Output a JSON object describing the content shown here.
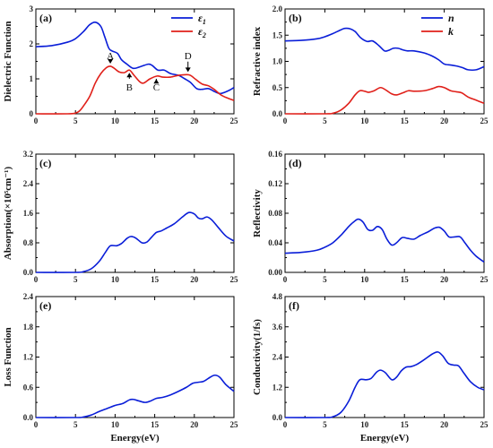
{
  "colors": {
    "blue": "#0a1ed8",
    "red": "#e0201a"
  },
  "chart_data": [
    {
      "type": "line",
      "panel_label": "(a)",
      "xlabel": "",
      "ylabel": "Dielectric Function",
      "xlim": [
        0,
        25
      ],
      "ylim": [
        0,
        3
      ],
      "xticks": [
        0,
        5,
        10,
        15,
        20,
        25
      ],
      "yticks": [
        0,
        1,
        2,
        3
      ],
      "legend": "top-right",
      "series": [
        {
          "name": "ε₁",
          "color": "blue",
          "x": [
            0,
            2,
            4,
            5,
            6,
            6.8,
            7.5,
            8.2,
            8.7,
            9.2,
            9.6,
            10.3,
            10.8,
            11.5,
            12.3,
            13.2,
            14.2,
            14.7,
            15.4,
            16.2,
            17,
            18,
            18.8,
            19.5,
            20.3,
            21,
            21.8,
            22.6,
            23.3,
            24.2,
            25
          ],
          "y": [
            1.92,
            1.95,
            2.05,
            2.15,
            2.35,
            2.55,
            2.62,
            2.5,
            2.2,
            1.88,
            1.8,
            1.73,
            1.55,
            1.42,
            1.3,
            1.35,
            1.42,
            1.38,
            1.25,
            1.25,
            1.15,
            1.1,
            1.0,
            0.9,
            0.72,
            0.7,
            0.72,
            0.63,
            0.58,
            0.65,
            0.75
          ]
        },
        {
          "name": "ε₂",
          "color": "red",
          "x": [
            0,
            4,
            5,
            5.5,
            6,
            6.8,
            7.5,
            8.2,
            8.9,
            9.4,
            9.9,
            10.5,
            11.2,
            11.8,
            12.4,
            13.1,
            13.6,
            14.4,
            15.3,
            16,
            17,
            18,
            19,
            19.5,
            20.2,
            21,
            21.8,
            22.5,
            23.5,
            25
          ],
          "y": [
            0,
            0,
            0.02,
            0.08,
            0.22,
            0.5,
            0.88,
            1.15,
            1.32,
            1.36,
            1.3,
            1.2,
            1.18,
            1.25,
            1.1,
            0.92,
            0.88,
            1.0,
            1.08,
            1.05,
            1.05,
            1.1,
            1.12,
            1.1,
            0.98,
            0.85,
            0.8,
            0.7,
            0.52,
            0.38
          ]
        }
      ],
      "annotations": [
        {
          "text": "A",
          "x": 9.4,
          "y": 1.36,
          "label_y": 1.57,
          "side": "above"
        },
        {
          "text": "B",
          "x": 11.8,
          "y": 1.25,
          "label_y": 0.72,
          "side": "below"
        },
        {
          "text": "C",
          "x": 15.2,
          "y": 1.07,
          "label_y": 0.72,
          "side": "below"
        },
        {
          "text": "D",
          "x": 19.2,
          "y": 1.12,
          "label_y": 1.57,
          "side": "above"
        }
      ]
    },
    {
      "type": "line",
      "panel_label": "(b)",
      "xlabel": "",
      "ylabel": "Refractive index",
      "xlim": [
        0,
        25
      ],
      "ylim": [
        0,
        2
      ],
      "xticks": [
        0,
        5,
        10,
        15,
        20,
        25
      ],
      "yticks": [
        0.0,
        0.5,
        1.0,
        1.5,
        2.0
      ],
      "tick_labels_y": [
        "0.0",
        "0.5",
        "1.0",
        "1.5",
        "2.0"
      ],
      "legend": "top-right",
      "series": [
        {
          "name": "n",
          "color": "blue",
          "x": [
            0,
            2,
            4,
            5,
            6,
            7,
            7.5,
            8.2,
            8.8,
            9.5,
            10.3,
            11,
            11.8,
            12.5,
            13,
            13.6,
            14.2,
            14.8,
            15.4,
            16.2,
            17.5,
            18.5,
            19.3,
            20,
            20.8,
            21.6,
            22.3,
            23,
            24,
            25
          ],
          "y": [
            1.39,
            1.4,
            1.43,
            1.47,
            1.53,
            1.6,
            1.63,
            1.62,
            1.57,
            1.45,
            1.38,
            1.39,
            1.3,
            1.2,
            1.21,
            1.25,
            1.25,
            1.22,
            1.2,
            1.2,
            1.16,
            1.1,
            1.03,
            0.95,
            0.93,
            0.91,
            0.88,
            0.84,
            0.84,
            0.9
          ]
        },
        {
          "name": "k",
          "color": "red",
          "x": [
            0,
            5,
            6,
            7,
            8,
            8.8,
            9.4,
            10,
            10.5,
            11.2,
            12,
            12.7,
            13.4,
            14,
            14.8,
            15.5,
            16.2,
            17.5,
            18.5,
            19.3,
            20,
            20.8,
            21.5,
            22.2,
            23,
            24,
            25
          ],
          "y": [
            0,
            0,
            0.01,
            0.07,
            0.2,
            0.36,
            0.44,
            0.43,
            0.41,
            0.44,
            0.5,
            0.45,
            0.38,
            0.36,
            0.4,
            0.44,
            0.43,
            0.44,
            0.48,
            0.52,
            0.5,
            0.44,
            0.42,
            0.4,
            0.32,
            0.26,
            0.2
          ]
        }
      ]
    },
    {
      "type": "line",
      "panel_label": "(c)",
      "xlabel": "",
      "ylabel": "Absorption(×10⁵cm⁻¹)",
      "xlim": [
        0,
        25
      ],
      "ylim": [
        0,
        3.2
      ],
      "xticks": [
        0,
        5,
        10,
        15,
        20,
        25
      ],
      "yticks": [
        0.0,
        0.8,
        1.6,
        2.4,
        3.2
      ],
      "tick_labels_y": [
        "0.0",
        "0.8",
        "1.6",
        "2.4",
        "3.2"
      ],
      "series": [
        {
          "name": "",
          "color": "blue",
          "x": [
            0,
            5,
            6,
            7,
            8,
            8.8,
            9.4,
            10.2,
            10.8,
            11.5,
            12,
            12.6,
            13.4,
            14,
            14.6,
            15.2,
            15.8,
            16.5,
            17.5,
            18.5,
            19.3,
            20,
            20.5,
            21,
            21.6,
            22.2,
            23,
            24,
            25
          ],
          "y": [
            0,
            0,
            0.02,
            0.1,
            0.3,
            0.55,
            0.72,
            0.72,
            0.78,
            0.92,
            0.97,
            0.93,
            0.8,
            0.82,
            0.95,
            1.08,
            1.12,
            1.2,
            1.32,
            1.5,
            1.62,
            1.58,
            1.47,
            1.45,
            1.5,
            1.42,
            1.22,
            0.98,
            0.85
          ]
        }
      ]
    },
    {
      "type": "line",
      "panel_label": "(d)",
      "xlabel": "",
      "ylabel": "Reflectivity",
      "xlim": [
        0,
        25
      ],
      "ylim": [
        0,
        0.16
      ],
      "xticks": [
        0,
        5,
        10,
        15,
        20,
        25
      ],
      "yticks": [
        0.0,
        0.04,
        0.08,
        0.12,
        0.16
      ],
      "tick_labels_y": [
        "0.00",
        "0.04",
        "0.08",
        "0.12",
        "0.16"
      ],
      "series": [
        {
          "name": "",
          "color": "blue",
          "x": [
            0,
            2,
            4,
            5,
            6,
            7,
            8,
            8.6,
            9.2,
            9.8,
            10.4,
            11,
            11.6,
            12.2,
            12.8,
            13.4,
            14,
            14.7,
            15.4,
            16.2,
            17,
            18,
            18.8,
            19.4,
            20,
            20.6,
            21.3,
            22,
            22.6,
            23.3,
            24,
            25
          ],
          "y": [
            0.026,
            0.027,
            0.03,
            0.034,
            0.04,
            0.05,
            0.062,
            0.068,
            0.072,
            0.068,
            0.058,
            0.057,
            0.062,
            0.058,
            0.045,
            0.037,
            0.04,
            0.047,
            0.046,
            0.045,
            0.05,
            0.055,
            0.06,
            0.061,
            0.056,
            0.048,
            0.048,
            0.048,
            0.04,
            0.03,
            0.022,
            0.014
          ]
        }
      ]
    },
    {
      "type": "line",
      "panel_label": "(e)",
      "xlabel": "Energy(eV)",
      "ylabel": "Loss Function",
      "xlim": [
        0,
        25
      ],
      "ylim": [
        0,
        2.4
      ],
      "xticks": [
        0,
        5,
        10,
        15,
        20,
        25
      ],
      "yticks": [
        0.0,
        0.6,
        1.2,
        1.8,
        2.4
      ],
      "tick_labels_y": [
        "0.0",
        "0.6",
        "1.2",
        "1.8",
        "2.4"
      ],
      "series": [
        {
          "name": "",
          "color": "blue",
          "x": [
            0,
            5,
            6,
            7,
            8,
            9,
            10,
            11,
            11.8,
            12.3,
            13,
            13.8,
            14.5,
            15.2,
            16,
            17,
            18,
            19,
            19.8,
            20.5,
            21.2,
            22,
            22.6,
            23.2,
            24,
            25
          ],
          "y": [
            0,
            0,
            0.01,
            0.05,
            0.12,
            0.18,
            0.24,
            0.28,
            0.35,
            0.36,
            0.33,
            0.3,
            0.33,
            0.38,
            0.4,
            0.45,
            0.52,
            0.6,
            0.68,
            0.7,
            0.72,
            0.8,
            0.84,
            0.8,
            0.65,
            0.52
          ]
        }
      ]
    },
    {
      "type": "line",
      "panel_label": "(f)",
      "xlabel": "Energy(eV)",
      "ylabel": "Conductivity(1/fs)",
      "xlim": [
        0,
        25
      ],
      "ylim": [
        0,
        4.8
      ],
      "xticks": [
        0,
        5,
        10,
        15,
        20,
        25
      ],
      "yticks": [
        0.0,
        1.2,
        2.4,
        3.6,
        4.8
      ],
      "tick_labels_y": [
        "0.0",
        "1.2",
        "2.4",
        "3.6",
        "4.8"
      ],
      "series": [
        {
          "name": "",
          "color": "blue",
          "x": [
            0,
            5,
            6,
            7,
            8,
            8.8,
            9.4,
            10.2,
            10.8,
            11.5,
            12,
            12.6,
            13.4,
            14,
            14.6,
            15.2,
            15.8,
            16.5,
            17.5,
            18.5,
            19.2,
            19.8,
            20.5,
            21.2,
            21.8,
            22.5,
            23.3,
            24.2,
            25
          ],
          "y": [
            0,
            0,
            0.03,
            0.2,
            0.65,
            1.2,
            1.5,
            1.5,
            1.55,
            1.8,
            1.88,
            1.78,
            1.5,
            1.6,
            1.85,
            2.0,
            2.02,
            2.1,
            2.3,
            2.52,
            2.6,
            2.45,
            2.15,
            2.08,
            2.05,
            1.75,
            1.42,
            1.2,
            1.1
          ]
        }
      ]
    }
  ]
}
